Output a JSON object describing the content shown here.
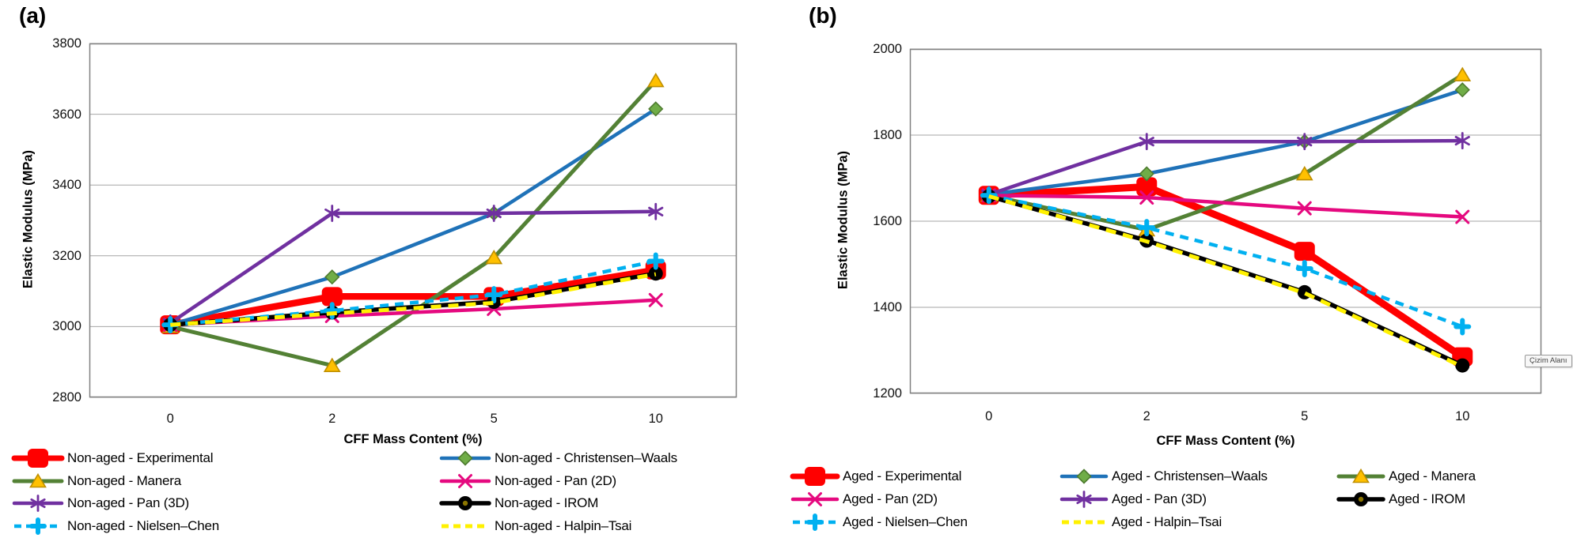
{
  "figure": {
    "tooltip": {
      "text": "Çizim Alanı"
    },
    "panels": [
      {
        "label": "(a)",
        "group": "Non-aged",
        "y_title": "Elastic Modulus (MPa)",
        "x_title": "CFF Mass Content (%)"
      },
      {
        "label": "(b)",
        "group": "Aged",
        "y_title": "Elastic Modulus (MPa)",
        "x_title": "CFF Mass Content (%)"
      }
    ]
  },
  "chart_data": [
    {
      "type": "line",
      "title": "(a) Non-aged",
      "xlabel": "CFF Mass Content (%)",
      "ylabel": "Elastic Modulus (MPa)",
      "categories": [
        "0",
        "2",
        "5",
        "10"
      ],
      "ylim": [
        2800,
        3800
      ],
      "yticks": [
        3800,
        3600,
        3400,
        3200,
        3000,
        2800
      ],
      "grid": true,
      "legend_position": "bottom",
      "series": [
        {
          "name": "Non-aged - Experimental",
          "color": "#FF0000",
          "line_width": 8.5,
          "dash": false,
          "marker": "square",
          "values": [
            3005,
            3085,
            3085,
            3160
          ]
        },
        {
          "name": "Non-aged - Christensen–Waals",
          "color": "#1F72B8",
          "line_width": 4.5,
          "dash": false,
          "marker": "diamond",
          "marker_fill": "#70AD47",
          "marker_stroke": "#4E7B2F",
          "values": [
            3005,
            3140,
            3320,
            3615
          ]
        },
        {
          "name": "Non-aged - Manera",
          "color": "#538135",
          "line_width": 5,
          "dash": false,
          "marker": "triangle",
          "marker_fill": "#FFC000",
          "marker_stroke": "#BF8F00",
          "values": [
            3000,
            2890,
            3195,
            3695
          ]
        },
        {
          "name": "Non-aged - Pan (2D)",
          "color": "#E5097F",
          "line_width": 4.5,
          "dash": false,
          "marker": "x",
          "values": [
            3005,
            3030,
            3050,
            3075
          ]
        },
        {
          "name": "Non-aged - Pan (3D)",
          "color": "#7030A0",
          "line_width": 4.5,
          "dash": false,
          "marker": "asterisk",
          "values": [
            3010,
            3320,
            3320,
            3325
          ]
        },
        {
          "name": "Non-aged - IROM",
          "color": "#000000",
          "line_width": 5.5,
          "dash": false,
          "marker": "circle",
          "values": [
            3005,
            3040,
            3070,
            3150
          ]
        },
        {
          "name": "Non-aged - Nielsen–Chen",
          "color": "#00B0F0",
          "line_width": 4.5,
          "dash": true,
          "marker": "plus",
          "values": [
            3005,
            3045,
            3090,
            3185
          ]
        },
        {
          "name": "Non-aged - Halpin–Tsai",
          "color": "#FFF100",
          "line_width": 5,
          "dash": true,
          "marker": "none",
          "values": [
            3005,
            3037,
            3067,
            3148
          ]
        }
      ]
    },
    {
      "type": "line",
      "title": "(b) Aged",
      "xlabel": "CFF Mass Content (%)",
      "ylabel": "Elastic Modulus (MPa)",
      "categories": [
        "0",
        "2",
        "5",
        "10"
      ],
      "ylim": [
        1200,
        2000
      ],
      "yticks": [
        2000,
        1800,
        1600,
        1400,
        1200
      ],
      "grid": true,
      "legend_position": "bottom",
      "series": [
        {
          "name": "Aged - Experimental",
          "color": "#FF0000",
          "line_width": 9,
          "dash": false,
          "marker": "square",
          "values": [
            1660,
            1680,
            1530,
            1285
          ]
        },
        {
          "name": "Aged - Christensen–Waals",
          "color": "#1F72B8",
          "line_width": 4.5,
          "dash": false,
          "marker": "diamond",
          "marker_fill": "#70AD47",
          "marker_stroke": "#4E7B2F",
          "values": [
            1662,
            1710,
            1785,
            1905
          ]
        },
        {
          "name": "Aged - Manera",
          "color": "#538135",
          "line_width": 5,
          "dash": false,
          "marker": "triangle",
          "marker_fill": "#FFC000",
          "marker_stroke": "#BF8F00",
          "values": [
            1660,
            1580,
            1710,
            1940
          ]
        },
        {
          "name": "Aged - Pan (2D)",
          "color": "#E5097F",
          "line_width": 4.5,
          "dash": false,
          "marker": "x",
          "values": [
            1660,
            1655,
            1630,
            1610
          ]
        },
        {
          "name": "Aged - Pan (3D)",
          "color": "#7030A0",
          "line_width": 4.5,
          "dash": false,
          "marker": "asterisk",
          "values": [
            1662,
            1785,
            1785,
            1787
          ]
        },
        {
          "name": "Aged - IROM",
          "color": "#000000",
          "line_width": 5.5,
          "dash": false,
          "marker": "circle",
          "values": [
            1658,
            1555,
            1435,
            1265
          ]
        },
        {
          "name": "Aged - Nielsen–Chen",
          "color": "#00B0F0",
          "line_width": 4.5,
          "dash": true,
          "marker": "plus",
          "values": [
            1660,
            1585,
            1490,
            1355
          ]
        },
        {
          "name": "Aged - Halpin–Tsai",
          "color": "#FFF100",
          "line_width": 5,
          "dash": true,
          "marker": "none",
          "values": [
            1658,
            1553,
            1433,
            1262
          ]
        }
      ]
    }
  ]
}
